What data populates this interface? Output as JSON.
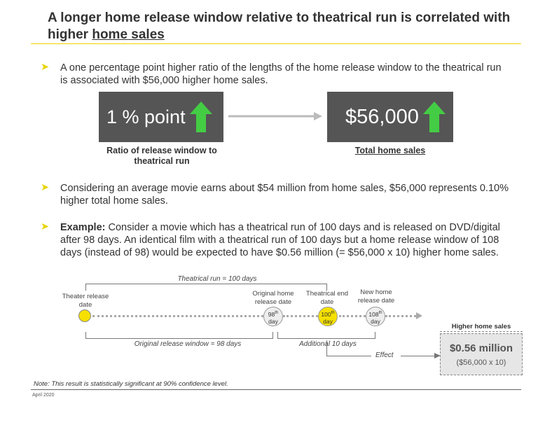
{
  "header": {
    "title_part1": "A longer home release window relative to theatrical run is correlated with higher ",
    "title_underlined": "home sales"
  },
  "bullets": [
    {
      "text": "A one percentage point higher ratio of the lengths of the home release window to the theatrical run is associated with $56,000 higher home sales."
    },
    {
      "text": "Considering an average movie earns about $54 million from home sales, $56,000 represents 0.10% higher total home sales."
    },
    {
      "bold_prefix": "Example:",
      "text": " Consider a movie which has a theatrical run of 100 days and is released on DVD/digital after 98 days. An identical film with a theatrical run of 100 days but a home release window of 108 days (instead of 98) would be expected to have $0.56 million (= $56,000 x 10) higher home sales."
    }
  ],
  "left_box": {
    "value": "1 % point",
    "caption": "Ratio of release window to theatrical run"
  },
  "right_box": {
    "value": "$56,000",
    "caption": "Total home sales"
  },
  "colors": {
    "accent_yellow": "#f0d400",
    "arrow_green": "#44cc44",
    "box_gray": "#555555",
    "node_yellow": "#f5e000"
  },
  "timeline": {
    "theatrical_run": "Theatrical run = 100 days",
    "theater_release": "Theater release date",
    "original_home": "Original home release date",
    "theatrical_end": "Theatrical end date",
    "new_home": "New home release date",
    "node_98": {
      "num": "98",
      "suffix": "th",
      "unit": "day"
    },
    "node_100": {
      "num": "100",
      "suffix": "th",
      "unit": "day"
    },
    "node_108": {
      "num": "108",
      "suffix": "th",
      "unit": "day"
    },
    "original_window": "Original release window = 98 days",
    "additional": "Additional 10 days",
    "effect": "Effect"
  },
  "higher_sales": {
    "label": "Higher home sales",
    "value": "$0.56 million",
    "detail": "($56,000 x 10)"
  },
  "footer": {
    "note": "Note: This result is statistically significant at 90% confidence level.",
    "date": "April 2020"
  }
}
